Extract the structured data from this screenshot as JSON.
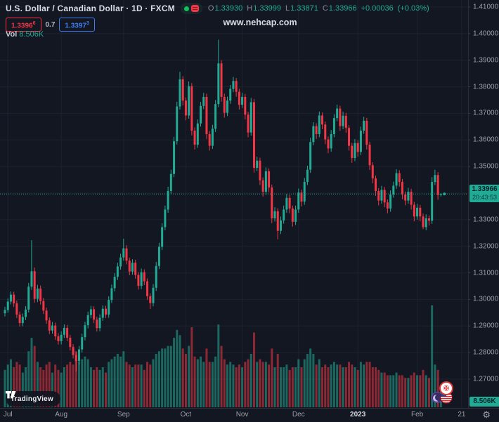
{
  "header": {
    "symbol_title": "U.S. Dollar / Canadian Dollar · 1D · FXCM",
    "ohlc": {
      "o_label": "O",
      "o": "1.33930",
      "h_label": "H",
      "h": "1.33999",
      "l_label": "L",
      "l": "1.33871",
      "c_label": "C",
      "c": "1.33966",
      "change": "+0.00036",
      "change_pct": "(+0.03%)"
    },
    "bid": {
      "main": "1.3396",
      "sup": "6"
    },
    "spread": "0.7",
    "ask": {
      "main": "1.3397",
      "sup": "3"
    },
    "vol_label": "Vol",
    "vol_value": "8.506K"
  },
  "watermark": "www.nehcap.com",
  "price_axis": {
    "labels": [
      "1.41000",
      "1.40000",
      "1.39000",
      "1.38000",
      "1.37000",
      "1.36000",
      "1.35000",
      "1.33000",
      "1.32000",
      "1.31000",
      "1.30000",
      "1.29000",
      "1.28000",
      "1.27000"
    ],
    "last_price_label": "1.33966",
    "countdown": "20:43:53",
    "volume_badge": "8.506K"
  },
  "time_axis": {
    "ticks": [
      {
        "label": "Jul",
        "i": 1
      },
      {
        "label": "Aug",
        "i": 19
      },
      {
        "label": "Sep",
        "i": 40
      },
      {
        "label": "Oct",
        "i": 61
      },
      {
        "label": "Nov",
        "i": 80
      },
      {
        "label": "Dec",
        "i": 99
      },
      {
        "label": "2023",
        "i": 119,
        "highlight": true
      },
      {
        "label": "Feb",
        "i": 139
      },
      {
        "label": "21",
        "i": 154
      }
    ]
  },
  "logo": {
    "text": "TradingView"
  },
  "icons": {
    "gear": "⚙",
    "maple_leaf": "✠"
  },
  "colors": {
    "background": "#131722",
    "grid": "#1d2230",
    "axis_text": "#9ba0ab",
    "up": "#22ab94",
    "down": "#f23645",
    "vol_up": "rgba(34,171,148,0.55)",
    "vol_down": "rgba(242,54,69,0.55)",
    "badge_bg": "#22ab94",
    "bid_red": "#f23645",
    "ask_blue": "#3e7df0"
  },
  "chart_data": {
    "type": "candlestick+volume",
    "title": "U.S. Dollar / Canadian Dollar",
    "symbol": "USDCAD",
    "interval": "1D",
    "exchange": "FXCM",
    "y_range": {
      "min": 1.27,
      "max": 1.41,
      "step": 0.01
    },
    "x_months": [
      "Jul",
      "Aug",
      "Sep",
      "Oct",
      "Nov",
      "Dec",
      "2023",
      "Feb"
    ],
    "last": {
      "price": 1.33966,
      "countdown": "20:43:53",
      "volume_k": 8.506
    },
    "legend": "grid on, price scale right, time scale bottom",
    "candles": [
      [
        1.2948,
        1.2972,
        1.2936,
        1.296,
        14
      ],
      [
        1.296,
        1.3004,
        1.295,
        1.2992,
        16
      ],
      [
        1.2992,
        1.303,
        1.2981,
        1.3018,
        18
      ],
      [
        1.3018,
        1.3029,
        1.2972,
        1.2985,
        15
      ],
      [
        1.2985,
        1.2996,
        1.293,
        1.2943,
        17
      ],
      [
        1.2943,
        1.2954,
        1.2898,
        1.2911,
        16
      ],
      [
        1.2911,
        1.2947,
        1.2899,
        1.2934,
        13
      ],
      [
        1.2934,
        1.2975,
        1.2922,
        1.2962,
        15
      ],
      [
        1.2962,
        1.3062,
        1.2951,
        1.3048,
        21
      ],
      [
        1.3048,
        1.3223,
        1.3036,
        1.3106,
        26
      ],
      [
        1.3106,
        1.312,
        1.2988,
        1.3002,
        23
      ],
      [
        1.3002,
        1.3055,
        1.299,
        1.3041,
        17
      ],
      [
        1.3041,
        1.3052,
        1.2981,
        1.2994,
        15
      ],
      [
        1.2994,
        1.3006,
        1.2945,
        1.2958,
        14
      ],
      [
        1.2958,
        1.2969,
        1.2908,
        1.2921,
        16
      ],
      [
        1.2921,
        1.2932,
        1.287,
        1.2883,
        17
      ],
      [
        1.2883,
        1.2915,
        1.2871,
        1.2902,
        13
      ],
      [
        1.2902,
        1.2913,
        1.2848,
        1.2861,
        16
      ],
      [
        1.2861,
        1.2873,
        1.283,
        1.2843,
        14
      ],
      [
        1.2843,
        1.288,
        1.2831,
        1.2867,
        13
      ],
      [
        1.2867,
        1.2906,
        1.2855,
        1.2893,
        15
      ],
      [
        1.2893,
        1.2904,
        1.2843,
        1.2856,
        16
      ],
      [
        1.2856,
        1.2867,
        1.2808,
        1.2821,
        17
      ],
      [
        1.2821,
        1.2832,
        1.2778,
        1.2791,
        16
      ],
      [
        1.2791,
        1.2802,
        1.2728,
        1.2768,
        21
      ],
      [
        1.2768,
        1.2825,
        1.2756,
        1.2812,
        17
      ],
      [
        1.2812,
        1.2871,
        1.28,
        1.2858,
        18
      ],
      [
        1.2858,
        1.2916,
        1.2846,
        1.2903,
        19
      ],
      [
        1.2903,
        1.2954,
        1.2891,
        1.2941,
        18
      ],
      [
        1.2941,
        1.2976,
        1.2929,
        1.2963,
        15
      ],
      [
        1.2963,
        1.2974,
        1.2911,
        1.2924,
        14
      ],
      [
        1.2924,
        1.2935,
        1.2879,
        1.2892,
        15
      ],
      [
        1.2892,
        1.2944,
        1.288,
        1.2931,
        14
      ],
      [
        1.2931,
        1.2978,
        1.2919,
        1.2965,
        15
      ],
      [
        1.2965,
        1.2976,
        1.293,
        1.2943,
        13
      ],
      [
        1.2943,
        1.3012,
        1.2931,
        1.2998,
        17
      ],
      [
        1.2998,
        1.3056,
        1.2986,
        1.3042,
        18
      ],
      [
        1.3042,
        1.3099,
        1.303,
        1.3085,
        19
      ],
      [
        1.3085,
        1.3138,
        1.3073,
        1.3124,
        20
      ],
      [
        1.3124,
        1.3172,
        1.3112,
        1.3158,
        19
      ],
      [
        1.3158,
        1.3228,
        1.3146,
        1.3192,
        21
      ],
      [
        1.3192,
        1.3204,
        1.3132,
        1.3146,
        17
      ],
      [
        1.3146,
        1.3157,
        1.3091,
        1.3105,
        16
      ],
      [
        1.3105,
        1.3151,
        1.3093,
        1.3138,
        15
      ],
      [
        1.3138,
        1.3149,
        1.3078,
        1.3092,
        16
      ],
      [
        1.3092,
        1.3103,
        1.3037,
        1.3051,
        16
      ],
      [
        1.3051,
        1.3116,
        1.3039,
        1.3102,
        16
      ],
      [
        1.3102,
        1.3113,
        1.3054,
        1.3068,
        14
      ],
      [
        1.3068,
        1.3079,
        1.2998,
        1.3012,
        17
      ],
      [
        1.3012,
        1.3023,
        1.2964,
        1.2986,
        16
      ],
      [
        1.2986,
        1.3058,
        1.2974,
        1.3044,
        18
      ],
      [
        1.3044,
        1.3141,
        1.3032,
        1.3126,
        20
      ],
      [
        1.3126,
        1.3213,
        1.3114,
        1.3198,
        21
      ],
      [
        1.3198,
        1.3287,
        1.3186,
        1.3272,
        22
      ],
      [
        1.3272,
        1.3353,
        1.326,
        1.3338,
        22
      ],
      [
        1.3338,
        1.3424,
        1.3326,
        1.3408,
        23
      ],
      [
        1.3408,
        1.3488,
        1.3396,
        1.3472,
        23
      ],
      [
        1.3472,
        1.3612,
        1.346,
        1.3595,
        26
      ],
      [
        1.3595,
        1.3744,
        1.3583,
        1.3726,
        29
      ],
      [
        1.3726,
        1.3856,
        1.3714,
        1.3828,
        27
      ],
      [
        1.3828,
        1.384,
        1.373,
        1.3748,
        22
      ],
      [
        1.3748,
        1.376,
        1.3674,
        1.3692,
        20
      ],
      [
        1.3692,
        1.382,
        1.368,
        1.3802,
        23
      ],
      [
        1.3802,
        1.3814,
        1.3617,
        1.3635,
        30
      ],
      [
        1.3635,
        1.3647,
        1.3564,
        1.3582,
        19
      ],
      [
        1.3582,
        1.3677,
        1.357,
        1.3662,
        18
      ],
      [
        1.3662,
        1.3743,
        1.365,
        1.3728,
        19
      ],
      [
        1.3728,
        1.3777,
        1.3716,
        1.3762,
        17
      ],
      [
        1.3762,
        1.3774,
        1.3604,
        1.3622,
        22
      ],
      [
        1.3622,
        1.3634,
        1.356,
        1.3578,
        17
      ],
      [
        1.3578,
        1.3657,
        1.3566,
        1.3642,
        17
      ],
      [
        1.3642,
        1.375,
        1.363,
        1.3735,
        19
      ],
      [
        1.3735,
        1.3977,
        1.3723,
        1.3888,
        31
      ],
      [
        1.3888,
        1.39,
        1.3744,
        1.3762,
        23
      ],
      [
        1.3762,
        1.3774,
        1.3684,
        1.3702,
        18
      ],
      [
        1.3702,
        1.3763,
        1.369,
        1.3748,
        16
      ],
      [
        1.3748,
        1.3807,
        1.3736,
        1.3792,
        17
      ],
      [
        1.3792,
        1.3837,
        1.378,
        1.3822,
        16
      ],
      [
        1.3822,
        1.3833,
        1.3763,
        1.3781,
        15
      ],
      [
        1.3781,
        1.3792,
        1.3714,
        1.3732,
        16
      ],
      [
        1.3732,
        1.3777,
        1.372,
        1.3762,
        15
      ],
      [
        1.3762,
        1.3773,
        1.3677,
        1.3695,
        17
      ],
      [
        1.3695,
        1.3706,
        1.361,
        1.3628,
        18
      ],
      [
        1.3628,
        1.3758,
        1.3616,
        1.3742,
        20
      ],
      [
        1.3742,
        1.3754,
        1.3477,
        1.3495,
        28
      ],
      [
        1.3495,
        1.3537,
        1.3483,
        1.3522,
        17
      ],
      [
        1.3522,
        1.3533,
        1.343,
        1.3448,
        18
      ],
      [
        1.3448,
        1.3459,
        1.3387,
        1.3405,
        17
      ],
      [
        1.3405,
        1.3497,
        1.3393,
        1.3482,
        17
      ],
      [
        1.3482,
        1.3493,
        1.3403,
        1.3421,
        16
      ],
      [
        1.3421,
        1.3432,
        1.3287,
        1.3305,
        22
      ],
      [
        1.3305,
        1.3347,
        1.3293,
        1.3332,
        15
      ],
      [
        1.3332,
        1.3343,
        1.3226,
        1.3258,
        20
      ],
      [
        1.3258,
        1.3312,
        1.3246,
        1.3297,
        15
      ],
      [
        1.3297,
        1.3353,
        1.3285,
        1.3338,
        15
      ],
      [
        1.3338,
        1.3397,
        1.3326,
        1.3382,
        16
      ],
      [
        1.3382,
        1.3393,
        1.3324,
        1.3342,
        14
      ],
      [
        1.3342,
        1.3353,
        1.3274,
        1.3292,
        15
      ],
      [
        1.3292,
        1.3353,
        1.328,
        1.3338,
        15
      ],
      [
        1.3338,
        1.3417,
        1.3326,
        1.3402,
        18
      ],
      [
        1.3402,
        1.3413,
        1.335,
        1.3368,
        15
      ],
      [
        1.3368,
        1.3457,
        1.3356,
        1.3442,
        18
      ],
      [
        1.3442,
        1.3503,
        1.343,
        1.3488,
        20
      ],
      [
        1.3488,
        1.3608,
        1.3476,
        1.3592,
        22
      ],
      [
        1.3592,
        1.3667,
        1.358,
        1.3652,
        20
      ],
      [
        1.3652,
        1.3663,
        1.3604,
        1.3622,
        16
      ],
      [
        1.3622,
        1.3707,
        1.361,
        1.3692,
        18
      ],
      [
        1.3692,
        1.3703,
        1.364,
        1.3658,
        15
      ],
      [
        1.3658,
        1.3669,
        1.3584,
        1.3602,
        16
      ],
      [
        1.3602,
        1.3613,
        1.355,
        1.3568,
        15
      ],
      [
        1.3568,
        1.3637,
        1.3556,
        1.3622,
        16
      ],
      [
        1.3622,
        1.3697,
        1.361,
        1.3682,
        17
      ],
      [
        1.3682,
        1.3733,
        1.367,
        1.3718,
        16
      ],
      [
        1.3718,
        1.3729,
        1.3634,
        1.3652,
        16
      ],
      [
        1.3652,
        1.3706,
        1.364,
        1.3691,
        15
      ],
      [
        1.3691,
        1.3702,
        1.3627,
        1.3645,
        15
      ],
      [
        1.3645,
        1.3656,
        1.356,
        1.3578,
        17
      ],
      [
        1.3578,
        1.3589,
        1.3514,
        1.3532,
        16
      ],
      [
        1.3532,
        1.3603,
        1.352,
        1.3588,
        15
      ],
      [
        1.3588,
        1.3599,
        1.3537,
        1.3555,
        14
      ],
      [
        1.3555,
        1.365,
        1.3543,
        1.3635,
        17
      ],
      [
        1.3635,
        1.3687,
        1.3623,
        1.3672,
        16
      ],
      [
        1.3672,
        1.3683,
        1.3564,
        1.3582,
        17
      ],
      [
        1.3582,
        1.3593,
        1.3487,
        1.3505,
        17
      ],
      [
        1.3505,
        1.3516,
        1.3437,
        1.3455,
        15
      ],
      [
        1.3455,
        1.3466,
        1.339,
        1.3408,
        15
      ],
      [
        1.3408,
        1.3419,
        1.3354,
        1.3372,
        14
      ],
      [
        1.3372,
        1.3427,
        1.336,
        1.3412,
        13
      ],
      [
        1.3412,
        1.3423,
        1.3347,
        1.3365,
        13
      ],
      [
        1.3365,
        1.3376,
        1.3324,
        1.3342,
        12
      ],
      [
        1.3342,
        1.341,
        1.333,
        1.3395,
        12
      ],
      [
        1.3395,
        1.3443,
        1.3383,
        1.3428,
        12
      ],
      [
        1.3428,
        1.349,
        1.3416,
        1.3475,
        13
      ],
      [
        1.3475,
        1.3486,
        1.3424,
        1.3442,
        12
      ],
      [
        1.3442,
        1.3453,
        1.3377,
        1.3395,
        12
      ],
      [
        1.3395,
        1.3406,
        1.3354,
        1.3372,
        11
      ],
      [
        1.3372,
        1.342,
        1.336,
        1.3405,
        11
      ],
      [
        1.3405,
        1.3416,
        1.3338,
        1.3356,
        12
      ],
      [
        1.3356,
        1.3367,
        1.3294,
        1.3312,
        13
      ],
      [
        1.3312,
        1.336,
        1.33,
        1.3345,
        12
      ],
      [
        1.3345,
        1.3356,
        1.3294,
        1.3312,
        12
      ],
      [
        1.3312,
        1.3323,
        1.3264,
        1.3272,
        14
      ],
      [
        1.3272,
        1.332,
        1.326,
        1.3305,
        12
      ],
      [
        1.3305,
        1.3316,
        1.3278,
        1.3296,
        11
      ],
      [
        1.3296,
        1.346,
        1.3284,
        1.3442,
        38.2
      ],
      [
        1.3442,
        1.3488,
        1.343,
        1.3468,
        16
      ],
      [
        1.3468,
        1.3479,
        1.3375,
        1.3393,
        14
      ],
      [
        1.3393,
        1.33999,
        1.33871,
        1.33966,
        8.506
      ]
    ]
  }
}
